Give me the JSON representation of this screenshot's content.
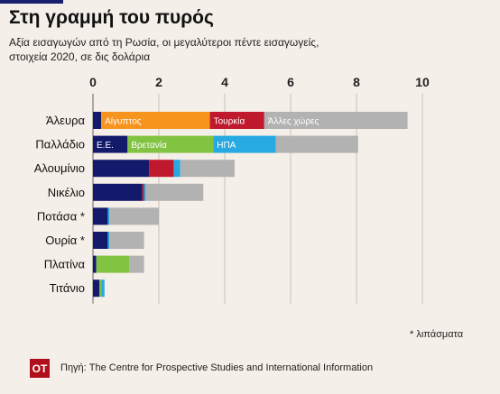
{
  "title": "Στη γραμμή του πυρός",
  "subtitle": "Αξία εισαγωγών από τη Ρωσία, οι μεγαλύτεροι πέντε εισαγωγείς, στοιχεία 2020, σε δις δολάρια",
  "note": "* λιπάσματα",
  "logo": "OT",
  "source": "Πηγή: The Centre for Prospective Studies and International Information",
  "colors": {
    "background": "#f4efe8",
    "axis": "#666666",
    "grid": "#c8c0b8"
  },
  "chart_data": {
    "type": "bar",
    "orientation": "horizontal",
    "stacked": true,
    "title": "Στη γραμμή του πυρός",
    "subtitle": "Αξία εισαγωγών από τη Ρωσία, οι μεγαλύτεροι πέντε εισαγωγείς, στοιχεία 2020, σε δις δολάρια",
    "xlabel": "",
    "ylabel": "",
    "xlim": [
      0,
      10
    ],
    "xticks": [
      0,
      2,
      4,
      6,
      8,
      10
    ],
    "axis_position": "top",
    "grid": true,
    "categories": [
      "Άλευρα",
      "Παλλάδιο",
      "Αλουμίνιο",
      "Νικέλιο",
      "Ποτάσα *",
      "Ουρία *",
      "Πλατίνα",
      "Τιτάνιο"
    ],
    "rows": [
      {
        "segments": [
          {
            "value": 0.25,
            "color": "#141a6b",
            "label": ""
          },
          {
            "value": 3.3,
            "color": "#f7941d",
            "label": "Αίγυπτος"
          },
          {
            "value": 1.65,
            "color": "#c0182c",
            "label": "Τουρκία"
          },
          {
            "value": 4.35,
            "color": "#b2b2b2",
            "label": "Άλλες χώρες"
          }
        ]
      },
      {
        "segments": [
          {
            "value": 1.05,
            "color": "#141a6b",
            "label": "Ε.Ε."
          },
          {
            "value": 2.6,
            "color": "#82c341",
            "label": "Βρετανία"
          },
          {
            "value": 1.9,
            "color": "#27a9e1",
            "label": "ΗΠΑ"
          },
          {
            "value": 2.5,
            "color": "#b2b2b2",
            "label": ""
          }
        ]
      },
      {
        "segments": [
          {
            "value": 1.7,
            "color": "#141a6b",
            "label": ""
          },
          {
            "value": 0.75,
            "color": "#c0182c",
            "label": ""
          },
          {
            "value": 0.2,
            "color": "#27a9e1",
            "label": ""
          },
          {
            "value": 1.65,
            "color": "#b2b2b2",
            "label": ""
          }
        ]
      },
      {
        "segments": [
          {
            "value": 1.5,
            "color": "#141a6b",
            "label": ""
          },
          {
            "value": 0.05,
            "color": "#c0182c",
            "label": ""
          },
          {
            "value": 0.05,
            "color": "#27a9e1",
            "label": ""
          },
          {
            "value": 1.75,
            "color": "#b2b2b2",
            "label": ""
          }
        ]
      },
      {
        "segments": [
          {
            "value": 0.45,
            "color": "#141a6b",
            "label": ""
          },
          {
            "value": 0.05,
            "color": "#27a9e1",
            "label": ""
          },
          {
            "value": 1.5,
            "color": "#b2b2b2",
            "label": ""
          }
        ]
      },
      {
        "segments": [
          {
            "value": 0.45,
            "color": "#141a6b",
            "label": ""
          },
          {
            "value": 0.05,
            "color": "#27a9e1",
            "label": ""
          },
          {
            "value": 1.05,
            "color": "#b2b2b2",
            "label": ""
          }
        ]
      },
      {
        "segments": [
          {
            "value": 0.1,
            "color": "#141a6b",
            "label": ""
          },
          {
            "value": 1.0,
            "color": "#82c341",
            "label": ""
          },
          {
            "value": 0.45,
            "color": "#b2b2b2",
            "label": ""
          }
        ]
      },
      {
        "segments": [
          {
            "value": 0.2,
            "color": "#141a6b",
            "label": ""
          },
          {
            "value": 0.05,
            "color": "#82c341",
            "label": ""
          },
          {
            "value": 0.1,
            "color": "#27a9e1",
            "label": ""
          }
        ]
      }
    ]
  }
}
